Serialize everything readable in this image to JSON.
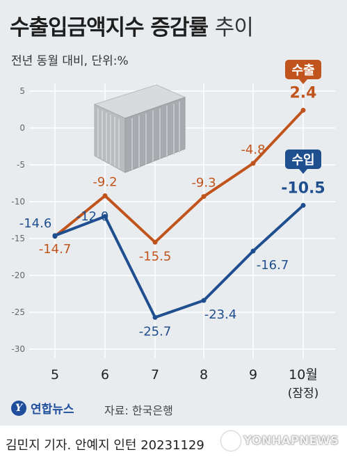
{
  "header": {
    "title_main": "수출입금액지수 증감률",
    "title_suffix": "추이",
    "subtitle": "전년 동월 대비, 단위:%"
  },
  "chart_data": {
    "type": "line",
    "categories": [
      "5",
      "6",
      "7",
      "8",
      "9",
      "10월"
    ],
    "category_sublabels": [
      "",
      "",
      "",
      "",
      "",
      "(잠정)"
    ],
    "ylim": [
      -30,
      5
    ],
    "yticks": [
      5,
      0,
      -5,
      -10,
      -15,
      -20,
      -25,
      -30
    ],
    "series": [
      {
        "name": "수출",
        "values": [
          -14.7,
          -9.2,
          -15.5,
          -9.3,
          -4.8,
          2.4
        ],
        "labels": [
          "-14.7",
          "-9.2",
          "-15.5",
          "-9.3",
          "-4.8",
          "2.4"
        ],
        "color": "#c0541c"
      },
      {
        "name": "수입",
        "values": [
          -14.6,
          -12.0,
          -25.7,
          -23.4,
          -16.7,
          -10.5
        ],
        "labels": [
          "-14.6",
          "-12.0",
          "-25.7",
          "-23.4",
          "-16.7",
          "-10.5"
        ],
        "color": "#1f4f8e"
      }
    ],
    "grid": true
  },
  "footer": {
    "logo_text": "연합뉴스",
    "source": "자료: 한국은행",
    "credit": "김민지 기자. 안예지 인턴  20231129",
    "watermark": "YONHAPNEWS"
  }
}
